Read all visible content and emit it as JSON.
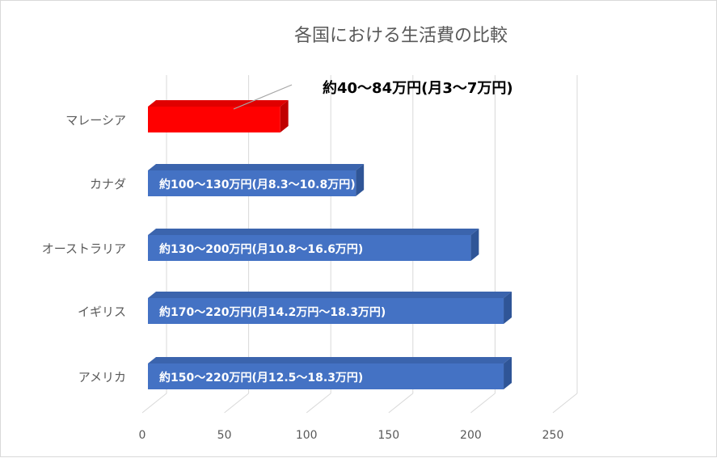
{
  "chart_data": {
    "type": "bar",
    "orientation": "horizontal",
    "style": "3d",
    "title": "各国における生活費の比較",
    "xlabel": "",
    "ylabel": "",
    "xlim": [
      0,
      250
    ],
    "x_ticks": [
      "0",
      "50",
      "100",
      "150",
      "200",
      "250"
    ],
    "grid": true,
    "categories": [
      "マレーシア",
      "カナダ",
      "オーストラリア",
      "イギリス",
      "アメリカ"
    ],
    "values": [
      84,
      130,
      200,
      220,
      220
    ],
    "data_labels": [
      "約40～84万円(月3～7万円)",
      "約100～130万円(月8.3～10.8万円)",
      "約130～200万円(月10.8～16.6万円)",
      "約170～220万円(月14.2万円～18.3万円)",
      "約150～220万円(月12.5～18.3万円)"
    ],
    "bar_colors": [
      "#ff0000",
      "#4472c4",
      "#4472c4",
      "#4472c4",
      "#4472c4"
    ],
    "bar_side_colors": [
      "#c00000",
      "#2f5597",
      "#2f5597",
      "#2f5597",
      "#2f5597"
    ],
    "bar_top_colors": [
      "#e00000",
      "#3b64ad",
      "#3b64ad",
      "#3b64ad",
      "#3b64ad"
    ],
    "highlight_index": 0
  }
}
